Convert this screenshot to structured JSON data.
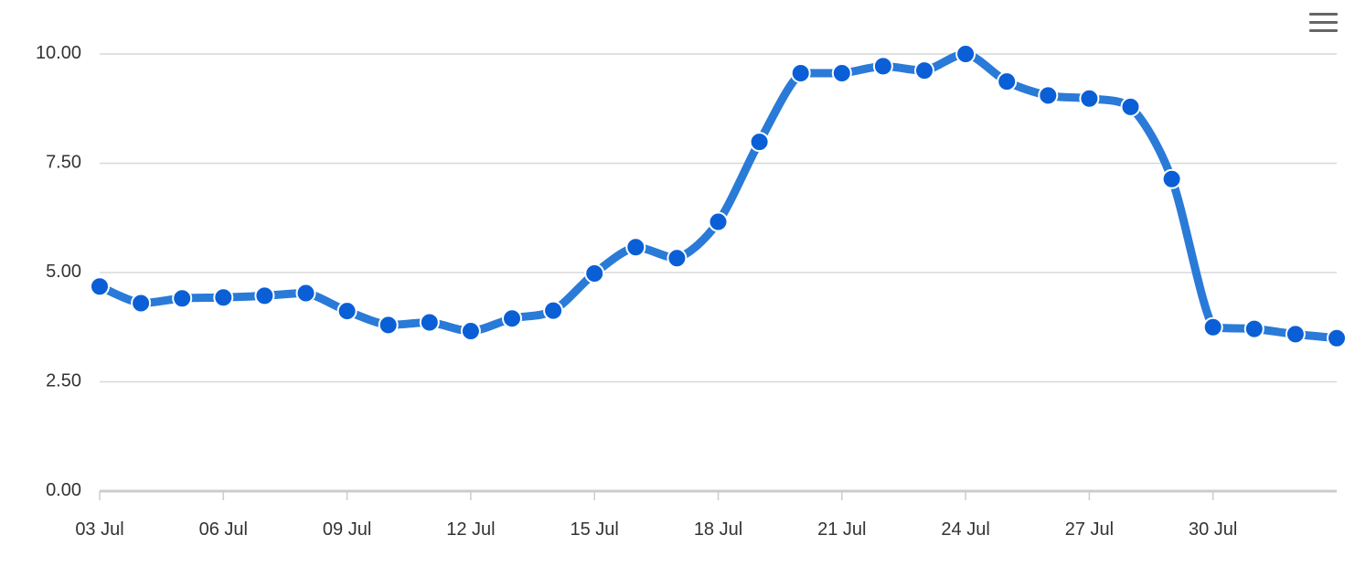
{
  "toolbar": {
    "menu_icon": "hamburger-menu-icon"
  },
  "colors": {
    "series_line": "#2a7ad8",
    "series_point": "#0a5fd6",
    "point_stroke": "#ffffff",
    "grid": "#d8d8d8",
    "axis": "#cccccc",
    "text": "#333333",
    "menu_icon": "#666666"
  },
  "chart_data": {
    "type": "line",
    "title": "",
    "xlabel": "",
    "ylabel": "",
    "ylim": [
      0,
      10
    ],
    "y_ticks": [
      "0.00",
      "2.50",
      "5.00",
      "7.50",
      "10.00"
    ],
    "y_tick_values": [
      0,
      2.5,
      5,
      7.5,
      10
    ],
    "x_ticks": [
      "03 Jul",
      "06 Jul",
      "09 Jul",
      "12 Jul",
      "15 Jul",
      "18 Jul",
      "21 Jul",
      "24 Jul",
      "27 Jul",
      "30 Jul"
    ],
    "x": [
      "03 Jul",
      "04 Jul",
      "05 Jul",
      "06 Jul",
      "07 Jul",
      "08 Jul",
      "09 Jul",
      "10 Jul",
      "11 Jul",
      "12 Jul",
      "13 Jul",
      "14 Jul",
      "15 Jul",
      "16 Jul",
      "17 Jul",
      "18 Jul",
      "19 Jul",
      "20 Jul",
      "21 Jul",
      "22 Jul",
      "23 Jul",
      "24 Jul",
      "25 Jul",
      "26 Jul",
      "27 Jul",
      "28 Jul",
      "29 Jul",
      "30 Jul",
      "31 Jul",
      "01 Aug",
      "02 Aug"
    ],
    "grid": true,
    "legend": "none",
    "series": [
      {
        "values": [
          4.68,
          4.3,
          4.41,
          4.43,
          4.47,
          4.53,
          4.12,
          3.8,
          3.86,
          3.66,
          3.95,
          4.13,
          4.98,
          5.58,
          5.33,
          6.16,
          7.99,
          9.56,
          9.56,
          9.72,
          9.62,
          10.0,
          9.37,
          9.05,
          8.98,
          8.79,
          7.14,
          3.75,
          3.71,
          3.59,
          3.5
        ]
      }
    ]
  }
}
